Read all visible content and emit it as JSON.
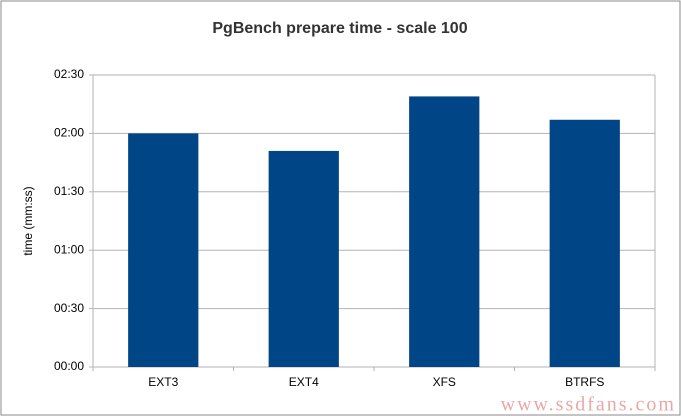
{
  "chart_data": {
    "type": "bar",
    "title": "PgBench prepare time - scale 100",
    "y_label": "time (mm:ss)",
    "categories": [
      "EXT3",
      "EXT4",
      "XFS",
      "BTRFS"
    ],
    "values": [
      120,
      111,
      139,
      127
    ],
    "color": "#004586",
    "ylim": [
      0,
      150
    ],
    "yticks": [
      {
        "value": 0,
        "label": "00:00"
      },
      {
        "value": 30,
        "label": "00:30"
      },
      {
        "value": 60,
        "label": "01:00"
      },
      {
        "value": 90,
        "label": "01:30"
      },
      {
        "value": 120,
        "label": "02:00"
      },
      {
        "value": 150,
        "label": "02:30"
      }
    ],
    "grid": true,
    "watermark": "www.ssdfans.com"
  }
}
